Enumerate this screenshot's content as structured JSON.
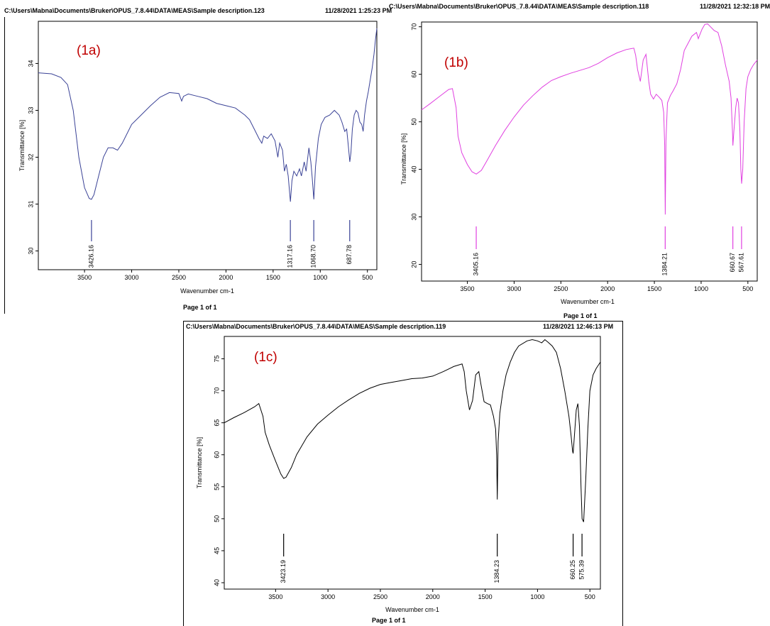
{
  "panels": [
    {
      "header_path": "C:\\Users\\Mabna\\Documents\\Bruker\\OPUS_7.8.44\\DATA\\MEAS\\Sample description.123",
      "header_time": "11/28/2021   1:25:23 PM",
      "footer": "Page 1 of 1"
    },
    {
      "header_path": "C:\\Users\\Mabna\\Documents\\Bruker\\OPUS_7.8.44\\DATA\\MEAS\\Sample description.118",
      "header_time": "11/28/2021   12:32:18 PM",
      "footer": "Page 1 of 1"
    },
    {
      "header_path": "C:\\Users\\Mabna\\Documents\\Bruker\\OPUS_7.8.44\\DATA\\MEAS\\Sample description.119",
      "header_time": "11/28/2021   12:46:13 PM",
      "footer": "Page 1 of 1"
    }
  ],
  "chart_data": [
    {
      "type": "line",
      "panel_label": "(1a)",
      "color": "#3a4296",
      "xlabel": "Wavenumber cm-1",
      "ylabel": "Transmittance [%]",
      "xlim": [
        3990,
        400
      ],
      "ylim": [
        29.6,
        34.9
      ],
      "x_ticks": [
        3500,
        3000,
        2500,
        2000,
        1500,
        1000,
        500
      ],
      "y_ticks": [
        30,
        31,
        32,
        33,
        34
      ],
      "peaks": [
        "3426.16",
        "1317.16",
        "1068.70",
        "687.78"
      ],
      "peak_positions": [
        3426.16,
        1317.16,
        1068.7,
        687.78
      ],
      "x": [
        3990,
        3850,
        3750,
        3680,
        3620,
        3560,
        3500,
        3450,
        3426,
        3400,
        3350,
        3300,
        3250,
        3200,
        3150,
        3100,
        3000,
        2900,
        2800,
        2700,
        2600,
        2500,
        2470,
        2450,
        2400,
        2300,
        2200,
        2100,
        2000,
        1900,
        1800,
        1750,
        1700,
        1650,
        1620,
        1600,
        1560,
        1520,
        1480,
        1450,
        1430,
        1400,
        1380,
        1360,
        1340,
        1317,
        1300,
        1280,
        1250,
        1220,
        1200,
        1170,
        1150,
        1120,
        1100,
        1085,
        1068,
        1050,
        1020,
        990,
        950,
        900,
        850,
        800,
        770,
        740,
        720,
        700,
        687,
        675,
        660,
        640,
        620,
        600,
        580,
        560,
        545,
        530,
        510,
        490,
        470,
        450,
        430,
        415,
        400
      ],
      "y": [
        33.8,
        33.78,
        33.7,
        33.55,
        33.0,
        32.0,
        31.35,
        31.12,
        31.1,
        31.2,
        31.6,
        32.0,
        32.2,
        32.2,
        32.15,
        32.3,
        32.7,
        32.9,
        33.1,
        33.28,
        33.38,
        33.36,
        33.2,
        33.3,
        33.35,
        33.3,
        33.25,
        33.15,
        33.1,
        33.05,
        32.9,
        32.8,
        32.6,
        32.4,
        32.3,
        32.45,
        32.4,
        32.5,
        32.35,
        32.0,
        32.3,
        32.15,
        31.7,
        31.85,
        31.6,
        31.05,
        31.5,
        31.7,
        31.6,
        31.75,
        31.6,
        31.9,
        31.7,
        32.2,
        31.9,
        31.55,
        31.1,
        31.8,
        32.4,
        32.7,
        32.85,
        32.9,
        33.0,
        32.9,
        32.75,
        32.55,
        32.6,
        32.2,
        31.9,
        32.1,
        32.6,
        32.9,
        33.0,
        32.95,
        32.75,
        32.7,
        32.55,
        32.9,
        33.2,
        33.4,
        33.65,
        33.9,
        34.2,
        34.5,
        34.75
      ]
    },
    {
      "type": "line",
      "panel_label": "(1b)",
      "color": "#e040e0",
      "xlabel": "Wavenumber cm-1",
      "ylabel": "Transmittance [%]",
      "xlim": [
        3990,
        400
      ],
      "ylim": [
        16.5,
        71
      ],
      "x_ticks": [
        3500,
        3000,
        2500,
        2000,
        1500,
        1000,
        500
      ],
      "y_ticks": [
        20,
        30,
        40,
        50,
        60,
        70
      ],
      "peaks": [
        "3405.16",
        "1384.21",
        "660.67",
        "567.61"
      ],
      "peak_positions": [
        3405.16,
        1384.21,
        660.67,
        567.61
      ],
      "x": [
        3990,
        3900,
        3800,
        3700,
        3660,
        3620,
        3600,
        3560,
        3500,
        3450,
        3405,
        3350,
        3300,
        3200,
        3100,
        3000,
        2900,
        2800,
        2700,
        2600,
        2500,
        2400,
        2300,
        2200,
        2100,
        2000,
        1900,
        1800,
        1720,
        1700,
        1680,
        1650,
        1620,
        1590,
        1560,
        1540,
        1510,
        1480,
        1450,
        1420,
        1400,
        1390,
        1384,
        1376,
        1360,
        1330,
        1300,
        1260,
        1220,
        1180,
        1100,
        1050,
        1030,
        1010,
        990,
        960,
        930,
        900,
        860,
        820,
        780,
        740,
        700,
        680,
        665,
        660,
        650,
        630,
        615,
        600,
        585,
        575,
        567,
        555,
        540,
        520,
        500,
        470,
        440,
        400
      ],
      "y": [
        52.5,
        53.8,
        55.3,
        56.8,
        57.0,
        53.0,
        47.0,
        43.5,
        41.0,
        39.5,
        39.0,
        39.8,
        41.5,
        45.0,
        48.2,
        51.0,
        53.5,
        55.5,
        57.3,
        58.7,
        59.5,
        60.2,
        60.8,
        61.4,
        62.3,
        63.5,
        64.5,
        65.2,
        65.5,
        64.0,
        61.0,
        58.5,
        63.0,
        64.2,
        58.5,
        55.8,
        54.8,
        55.8,
        55.2,
        54.5,
        52.0,
        45.0,
        30.5,
        46.0,
        54.0,
        55.5,
        56.5,
        58.0,
        61.0,
        65.0,
        68.0,
        68.8,
        67.5,
        68.5,
        69.5,
        70.5,
        70.6,
        70.0,
        69.2,
        68.8,
        66.0,
        62.0,
        58.5,
        55.0,
        48.0,
        45.0,
        48.0,
        53.0,
        55.0,
        54.0,
        48.0,
        40.0,
        37.0,
        40.0,
        50.0,
        57.0,
        59.5,
        61.0,
        62.0,
        63.0
      ]
    },
    {
      "type": "line",
      "panel_label": "(1c)",
      "color": "#000000",
      "xlabel": "Wavenumber cm-1",
      "ylabel": "Transmittance [%]",
      "xlim": [
        3990,
        400
      ],
      "ylim": [
        39,
        78.5
      ],
      "x_ticks": [
        3500,
        3000,
        2500,
        2000,
        1500,
        1000,
        500
      ],
      "y_ticks": [
        40,
        45,
        50,
        55,
        60,
        65,
        70,
        75
      ],
      "peaks": [
        "3423.19",
        "1384.23",
        "660.25",
        "575.39"
      ],
      "peak_positions": [
        3423.19,
        1384.23,
        660.25,
        575.39
      ],
      "x": [
        3990,
        3900,
        3800,
        3700,
        3660,
        3620,
        3600,
        3560,
        3500,
        3450,
        3423,
        3400,
        3350,
        3300,
        3200,
        3100,
        3000,
        2900,
        2800,
        2700,
        2600,
        2500,
        2400,
        2300,
        2200,
        2100,
        2000,
        1900,
        1800,
        1720,
        1700,
        1680,
        1650,
        1620,
        1590,
        1560,
        1540,
        1510,
        1480,
        1450,
        1420,
        1400,
        1390,
        1384,
        1376,
        1360,
        1330,
        1300,
        1260,
        1220,
        1180,
        1100,
        1050,
        1000,
        960,
        930,
        900,
        860,
        820,
        780,
        740,
        700,
        680,
        665,
        660,
        650,
        630,
        615,
        600,
        585,
        575,
        560,
        540,
        520,
        500,
        470,
        440,
        400
      ],
      "y": [
        65.0,
        65.8,
        66.6,
        67.5,
        68.0,
        66.0,
        63.5,
        61.5,
        59.0,
        57.0,
        56.3,
        56.5,
        58.0,
        60.0,
        62.8,
        64.8,
        66.2,
        67.5,
        68.6,
        69.6,
        70.4,
        71.0,
        71.3,
        71.6,
        71.9,
        72.0,
        72.3,
        73.0,
        73.8,
        74.2,
        73.0,
        70.0,
        67.0,
        68.5,
        72.5,
        73.0,
        71.0,
        68.3,
        68.0,
        67.8,
        66.0,
        64.0,
        60.0,
        53.0,
        62.0,
        66.5,
        70.0,
        72.5,
        74.5,
        76.0,
        77.0,
        77.8,
        78.0,
        77.8,
        77.5,
        78.0,
        77.6,
        77.0,
        76.0,
        73.5,
        70.0,
        66.0,
        63.0,
        60.5,
        60.2,
        62.5,
        67.0,
        68.0,
        64.5,
        55.0,
        50.0,
        49.5,
        56.0,
        64.0,
        70.0,
        72.5,
        73.5,
        74.5
      ]
    }
  ]
}
